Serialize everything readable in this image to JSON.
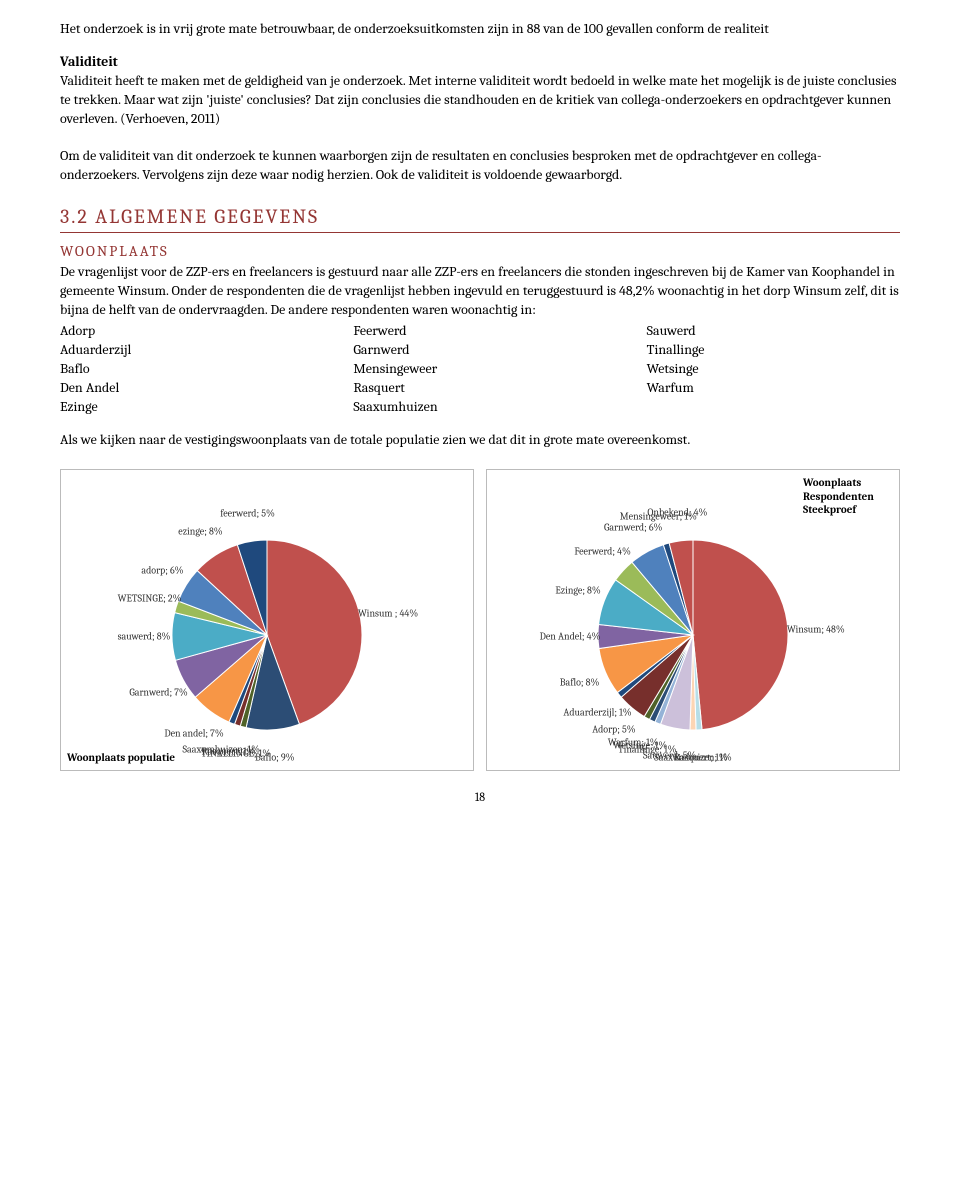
{
  "para1": "Het onderzoek is in vrij grote mate betrouwbaar, de onderzoeksuitkomsten zijn in 88 van de 100 gevallen conform de realiteit",
  "validiteit_h": "Validiteit",
  "para2": "Validiteit heeft te maken met de geldigheid van je onderzoek. Met interne validiteit wordt bedoeld in welke mate het mogelijk is de juiste conclusies te trekken. Maar wat zijn 'juiste' conclusies? Dat zijn conclusies die standhouden en de kritiek van collega-onderzoekers en opdrachtgever kunnen overleven. (Verhoeven, 2011)",
  "para3": "Om de validiteit van dit onderzoek te kunnen waarborgen zijn de resultaten en conclusies besproken met de opdrachtgever en collega-onderzoekers. Vervolgens zijn deze waar nodig herzien. Ook de validiteit is voldoende gewaarborgd.",
  "section32": "3.2 ALGEMENE GEGEVENS",
  "woonplaats_h": "WOONPLAATS",
  "para4": "De vragenlijst voor de ZZP-ers en freelancers is gestuurd naar alle ZZP-ers en freelancers die stonden ingeschreven bij de Kamer van Koophandel in gemeente Winsum. Onder de respondenten die de vragenlijst hebben ingevuld en teruggestuurd is 48,2% woonachtig in het dorp Winsum zelf, dit is bijna de helft van de ondervraagden. De andere respondenten waren woonachtig in:",
  "cols": {
    "c1": [
      "Adorp",
      "Aduarderzijl",
      "Baflo",
      "Den Andel",
      "Ezinge"
    ],
    "c2": [
      "Feerwerd",
      "Garnwerd",
      "Mensingeweer",
      "Rasquert",
      "Saaxumhuizen"
    ],
    "c3": [
      "Sauwerd",
      "Tinallinge",
      "Wetsinge",
      "Warfum"
    ]
  },
  "para5": "Als we kijken naar de vestigingswoonplaats van de totale populatie zien we dat dit in grote mate overeenkomst.",
  "page_num": "18",
  "chart_left": {
    "title": "Woonplaats populatie",
    "radius": 95,
    "label_fontsize": 10,
    "slices": [
      {
        "label": "Winsum ; 44%",
        "value": 44,
        "color": "#c0504d"
      },
      {
        "label": "Baflo; 9%",
        "value": 9,
        "color": "#2c4d75"
      },
      {
        "label": "TINALLINGE; 1%",
        "value": 1,
        "color": "#4f6228"
      },
      {
        "label": "Rasquert; 1%",
        "value": 1,
        "color": "#772f2c"
      },
      {
        "label": "Saaxumhuizen; 1%",
        "value": 1,
        "color": "#1f497d"
      },
      {
        "label": "Den andel; 7%",
        "value": 7,
        "color": "#f79646"
      },
      {
        "label": "Garnwerd; 7%",
        "value": 7,
        "color": "#8064a2"
      },
      {
        "label": "sauwerd; 8%",
        "value": 8,
        "color": "#4bacc6"
      },
      {
        "label": "WETSINGE; 2%",
        "value": 2,
        "color": "#9bbb59"
      },
      {
        "label": "adorp; 6%",
        "value": 6,
        "color": "#4f81bd"
      },
      {
        "label": "ezinge; 8%",
        "value": 8,
        "color": "#c0504d"
      },
      {
        "label": "feerwerd; 5%",
        "value": 5,
        "color": "#1f497d"
      }
    ]
  },
  "chart_right": {
    "title": "Woonplaats Respondenten Steekproef",
    "radius": 95,
    "label_fontsize": 10,
    "slices": [
      {
        "label": "Winsum; 48%",
        "value": 48,
        "color": "#c0504d"
      },
      {
        "label": "Rasquert; 1%",
        "value": 1,
        "color": "#b7dee8"
      },
      {
        "label": "Saaxumhuizen; 1%",
        "value": 1,
        "color": "#fcd5b4"
      },
      {
        "label": "Sauwerd; 5%",
        "value": 5,
        "color": "#ccc0da"
      },
      {
        "label": "Tinallinge; 1%",
        "value": 1,
        "color": "#95b3d7"
      },
      {
        "label": "Wetsinge; 1%",
        "value": 1,
        "color": "#2c4d75"
      },
      {
        "label": "Warfum; 1%",
        "value": 1,
        "color": "#4f6228"
      },
      {
        "label": "Adorp; 5%",
        "value": 5,
        "color": "#772f2c"
      },
      {
        "label": "Aduarderzijl; 1%",
        "value": 1,
        "color": "#1f497d"
      },
      {
        "label": "Baflo; 8%",
        "value": 8,
        "color": "#f79646"
      },
      {
        "label": "Den Andel; 4%",
        "value": 4,
        "color": "#8064a2"
      },
      {
        "label": "Ezinge; 8%",
        "value": 8,
        "color": "#4bacc6"
      },
      {
        "label": "Feerwerd; 4%",
        "value": 4,
        "color": "#9bbb59"
      },
      {
        "label": "Garnwerd; 6%",
        "value": 6,
        "color": "#4f81bd"
      },
      {
        "label": "Mensingeweer; 1%",
        "value": 1,
        "color": "#1f497d"
      },
      {
        "label": "Onbekend; 4%",
        "value": 4,
        "color": "#c0504d"
      }
    ]
  }
}
